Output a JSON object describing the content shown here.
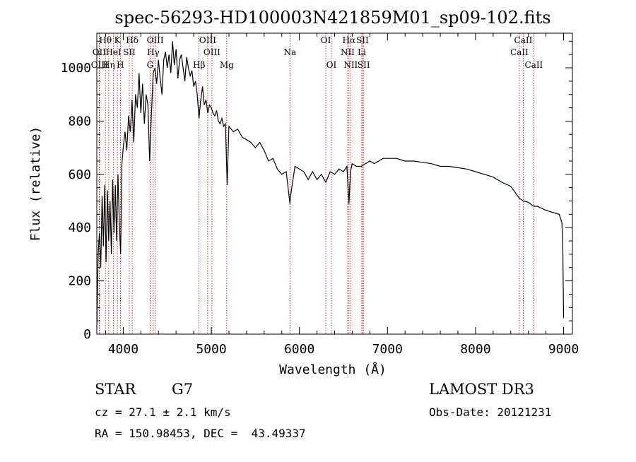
{
  "chart_data": {
    "type": "line",
    "title": "spec-56293-HD100003N421859M01_sp09-102.fits",
    "xlabel": "Wavelength (Å)",
    "ylabel": "Flux (relative)",
    "xlim": [
      3700,
      9100
    ],
    "ylim": [
      0,
      1130
    ],
    "x_ticks": [
      4000,
      5000,
      6000,
      7000,
      8000,
      9000
    ],
    "y_ticks": [
      0,
      200,
      400,
      600,
      800,
      1000
    ],
    "grid": false,
    "line_color": "#000000",
    "marker_color": "#cc0000",
    "series": [
      {
        "points": [
          [
            3700,
            20
          ],
          [
            3715,
            300
          ],
          [
            3730,
            380
          ],
          [
            3745,
            250
          ],
          [
            3760,
            520
          ],
          [
            3775,
            330
          ],
          [
            3790,
            560
          ],
          [
            3805,
            270
          ],
          [
            3820,
            540
          ],
          [
            3835,
            350
          ],
          [
            3850,
            500
          ],
          [
            3865,
            300
          ],
          [
            3880,
            580
          ],
          [
            3895,
            380
          ],
          [
            3910,
            560
          ],
          [
            3925,
            350
          ],
          [
            3940,
            600
          ],
          [
            3955,
            420
          ],
          [
            3970,
            300
          ],
          [
            3985,
            640
          ],
          [
            4000,
            700
          ],
          [
            4020,
            760
          ],
          [
            4040,
            690
          ],
          [
            4060,
            820
          ],
          [
            4080,
            760
          ],
          [
            4100,
            880
          ],
          [
            4120,
            720
          ],
          [
            4140,
            900
          ],
          [
            4160,
            850
          ],
          [
            4180,
            980
          ],
          [
            4200,
            830
          ],
          [
            4220,
            940
          ],
          [
            4240,
            790
          ],
          [
            4260,
            900
          ],
          [
            4280,
            860
          ],
          [
            4300,
            650
          ],
          [
            4320,
            830
          ],
          [
            4340,
            980
          ],
          [
            4360,
            1000
          ],
          [
            4380,
            940
          ],
          [
            4400,
            1030
          ],
          [
            4420,
            960
          ],
          [
            4440,
            900
          ],
          [
            4460,
            1030
          ],
          [
            4480,
            1060
          ],
          [
            4500,
            1000
          ],
          [
            4520,
            1050
          ],
          [
            4540,
            980
          ],
          [
            4560,
            1100
          ],
          [
            4580,
            1010
          ],
          [
            4600,
            1070
          ],
          [
            4620,
            960
          ],
          [
            4640,
            1030
          ],
          [
            4660,
            1050
          ],
          [
            4680,
            1000
          ],
          [
            4700,
            950
          ],
          [
            4720,
            1040
          ],
          [
            4740,
            1000
          ],
          [
            4760,
            970
          ],
          [
            4780,
            990
          ],
          [
            4800,
            930
          ],
          [
            4820,
            950
          ],
          [
            4840,
            900
          ],
          [
            4860,
            810
          ],
          [
            4880,
            880
          ],
          [
            4900,
            930
          ],
          [
            4920,
            860
          ],
          [
            4940,
            880
          ],
          [
            4960,
            830
          ],
          [
            4980,
            860
          ],
          [
            5000,
            850
          ],
          [
            5020,
            830
          ],
          [
            5040,
            820
          ],
          [
            5060,
            840
          ],
          [
            5080,
            800
          ],
          [
            5100,
            790
          ],
          [
            5120,
            810
          ],
          [
            5140,
            780
          ],
          [
            5160,
            790
          ],
          [
            5180,
            560
          ],
          [
            5200,
            780
          ],
          [
            5250,
            760
          ],
          [
            5300,
            770
          ],
          [
            5350,
            740
          ],
          [
            5400,
            730
          ],
          [
            5450,
            720
          ],
          [
            5500,
            700
          ],
          [
            5550,
            720
          ],
          [
            5600,
            690
          ],
          [
            5650,
            650
          ],
          [
            5700,
            660
          ],
          [
            5750,
            620
          ],
          [
            5800,
            600
          ],
          [
            5850,
            610
          ],
          [
            5893,
            490
          ],
          [
            5900,
            520
          ],
          [
            5950,
            630
          ],
          [
            6000,
            620
          ],
          [
            6050,
            610
          ],
          [
            6100,
            580
          ],
          [
            6150,
            610
          ],
          [
            6200,
            580
          ],
          [
            6250,
            600
          ],
          [
            6300,
            570
          ],
          [
            6350,
            610
          ],
          [
            6400,
            600
          ],
          [
            6450,
            620
          ],
          [
            6500,
            610
          ],
          [
            6540,
            630
          ],
          [
            6563,
            490
          ],
          [
            6580,
            610
          ],
          [
            6600,
            640
          ],
          [
            6650,
            630
          ],
          [
            6700,
            630
          ],
          [
            6750,
            640
          ],
          [
            6800,
            650
          ],
          [
            6850,
            640
          ],
          [
            6900,
            650
          ],
          [
            6950,
            660
          ],
          [
            7000,
            660
          ],
          [
            7100,
            660
          ],
          [
            7200,
            650
          ],
          [
            7300,
            650
          ],
          [
            7400,
            645
          ],
          [
            7500,
            640
          ],
          [
            7600,
            630
          ],
          [
            7700,
            630
          ],
          [
            7800,
            625
          ],
          [
            7900,
            620
          ],
          [
            8000,
            610
          ],
          [
            8100,
            600
          ],
          [
            8200,
            590
          ],
          [
            8300,
            570
          ],
          [
            8400,
            555
          ],
          [
            8498,
            510
          ],
          [
            8542,
            500
          ],
          [
            8600,
            495
          ],
          [
            8662,
            480
          ],
          [
            8700,
            480
          ],
          [
            8800,
            465
          ],
          [
            8900,
            455
          ],
          [
            8950,
            450
          ],
          [
            8980,
            420
          ],
          [
            8990,
            360
          ],
          [
            9000,
            60
          ]
        ]
      }
    ],
    "lines": [
      {
        "label": "Hθ",
        "wl": 3798,
        "row": 0
      },
      {
        "label": "OII",
        "wl": 3727,
        "row": 1
      },
      {
        "label": "OIII",
        "wl": 3730,
        "row": 2
      },
      {
        "label": "Hη",
        "wl": 3835,
        "row": 2
      },
      {
        "label": "HeI",
        "wl": 3889,
        "row": 1
      },
      {
        "label": "K",
        "wl": 3934,
        "row": 0
      },
      {
        "label": "SII",
        "wl": 4069,
        "row": 1
      },
      {
        "label": "H",
        "wl": 3968,
        "row": 2
      },
      {
        "label": "Hδ",
        "wl": 4102,
        "row": 0
      },
      {
        "label": "OIII",
        "wl": 4363,
        "row": 0
      },
      {
        "label": "Hγ",
        "wl": 4341,
        "row": 1
      },
      {
        "label": "G",
        "wl": 4305,
        "row": 2
      },
      {
        "label": "OIII",
        "wl": 4959,
        "row": 0
      },
      {
        "label": "OIII",
        "wl": 5007,
        "row": 1
      },
      {
        "label": "Hβ",
        "wl": 4861,
        "row": 2
      },
      {
        "label": "Mg",
        "wl": 5175,
        "row": 2
      },
      {
        "label": "Na",
        "wl": 5893,
        "row": 1
      },
      {
        "label": "OI",
        "wl": 6300,
        "row": 0
      },
      {
        "label": "OI",
        "wl": 6364,
        "row": 2
      },
      {
        "label": "Hα",
        "wl": 6563,
        "row": 0
      },
      {
        "label": "NII",
        "wl": 6548,
        "row": 1
      },
      {
        "label": "NII",
        "wl": 6583,
        "row": 2
      },
      {
        "label": "SII",
        "wl": 6716,
        "row": 0
      },
      {
        "label": "Li",
        "wl": 6708,
        "row": 1
      },
      {
        "label": "SII",
        "wl": 6731,
        "row": 2
      },
      {
        "label": "CaII",
        "wl": 8542,
        "row": 0
      },
      {
        "label": "CaII",
        "wl": 8498,
        "row": 1
      },
      {
        "label": "CaII",
        "wl": 8662,
        "row": 2
      }
    ]
  },
  "info": {
    "object_type": "STAR",
    "subclass": "G7",
    "cz": "cz = 27.1 ± 2.1 km/s",
    "coords": "RA = 150.98453, DEC =  43.49337",
    "survey": "LAMOST DR3",
    "obs_date": "Obs-Date: 20121231"
  }
}
